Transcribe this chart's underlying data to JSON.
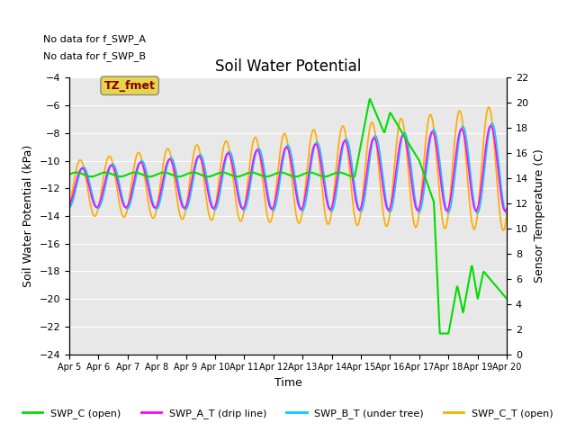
{
  "title": "Soil Water Potential",
  "ylabel_left": "Soil Water Potential (kPa)",
  "ylabel_right": "Sensor Temperature (C)",
  "xlabel": "Time",
  "ylim_left": [
    -24,
    -4
  ],
  "ylim_right": [
    0,
    22
  ],
  "yticks_left": [
    -4,
    -6,
    -8,
    -10,
    -12,
    -14,
    -16,
    -18,
    -20,
    -22,
    -24
  ],
  "yticks_right": [
    0,
    2,
    4,
    6,
    8,
    10,
    12,
    14,
    16,
    18,
    20,
    22
  ],
  "text_no_data": [
    "No data for f_SWP_A",
    "No data for f_SWP_B"
  ],
  "annotation_box": "TZ_fmet",
  "annotation_box_facecolor": "#e8d44d",
  "annotation_box_edgecolor": "#888888",
  "annotation_box_text_color": "#800000",
  "plot_bg_color": "#e8e8e8",
  "xtick_labels": [
    "Apr 5",
    "Apr 6",
    "Apr 7",
    "Apr 8",
    "Apr 9",
    "Apr 10",
    "Apr 11",
    "Apr 12",
    "Apr 13",
    "Apr 14",
    "Apr 15",
    "Apr 16",
    "Apr 17",
    "Apr 18",
    "Apr 19",
    "Apr 20"
  ],
  "color_swp_c": "#00dd00",
  "color_swp_at": "#ff00ff",
  "color_swp_bt": "#00ccff",
  "color_swp_ct": "#ffaa00",
  "grid_color": "#ffffff",
  "title_fontsize": 12,
  "label_fontsize": 9,
  "tick_fontsize": 8,
  "legend_fontsize": 8
}
